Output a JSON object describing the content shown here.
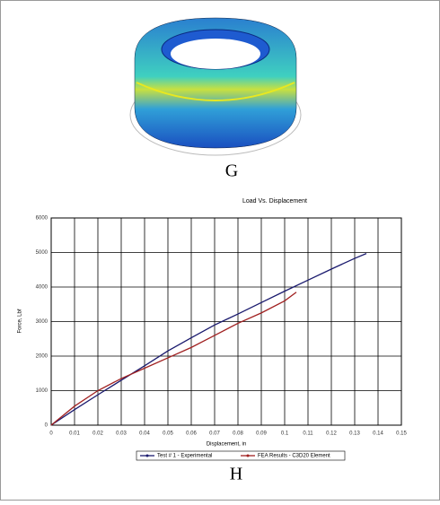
{
  "figure_g": {
    "caption": "G"
  },
  "chart_data": {
    "type": "line",
    "title": "Load Vs. Displacement",
    "xlabel": "Displacement, in",
    "ylabel": "Force, Lbf",
    "caption": "H",
    "xlim": [
      0,
      0.15
    ],
    "xticks": [
      0,
      0.01,
      0.02,
      0.03,
      0.04,
      0.05,
      0.06,
      0.07,
      0.08,
      0.09,
      0.1,
      0.11,
      0.12,
      0.13,
      0.14,
      0.15
    ],
    "ylim": [
      0,
      6000
    ],
    "yticks": [
      0,
      1000,
      2000,
      3000,
      4000,
      5000,
      6000
    ],
    "grid": true,
    "legend": "bottom",
    "series": [
      {
        "name": "Test # 1 - Experimental",
        "color": "#1a1a6e",
        "x": [
          0,
          0.01,
          0.02,
          0.03,
          0.04,
          0.05,
          0.06,
          0.07,
          0.08,
          0.09,
          0.1,
          0.11,
          0.12,
          0.13,
          0.135
        ],
        "values": [
          0,
          450,
          880,
          1300,
          1720,
          2150,
          2530,
          2900,
          3220,
          3550,
          3880,
          4200,
          4520,
          4830,
          4970
        ]
      },
      {
        "name": "FEA Results - C3D20 Element",
        "color": "#a02020",
        "x": [
          0,
          0.01,
          0.02,
          0.03,
          0.04,
          0.05,
          0.06,
          0.07,
          0.08,
          0.09,
          0.1,
          0.105
        ],
        "values": [
          0,
          550,
          1000,
          1350,
          1650,
          1950,
          2250,
          2600,
          2950,
          3250,
          3600,
          3850
        ]
      }
    ]
  }
}
